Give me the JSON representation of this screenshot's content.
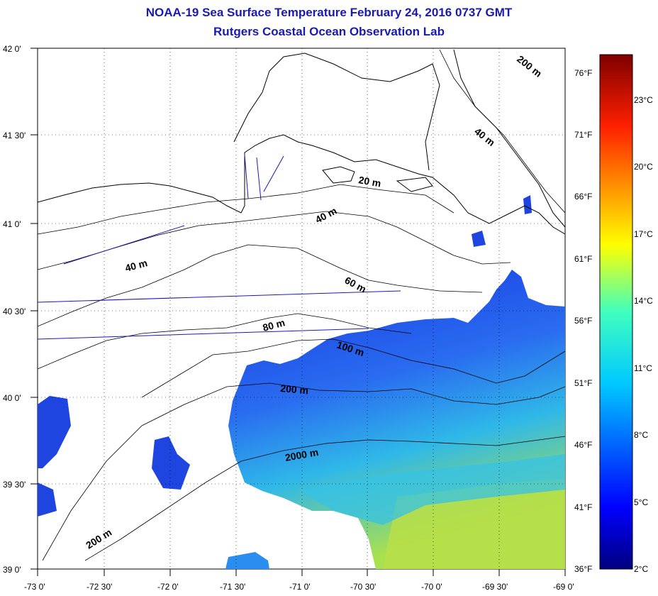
{
  "title": "NOAA-19 Sea Surface Temperature February 24, 2016 0737 GMT",
  "subtitle": "Rutgers Coastal Ocean Observation Lab",
  "lat_labels": [
    "42 0'",
    "41 30'",
    "41 0'",
    "40 30'",
    "40 0'",
    "39 30'",
    "39 0'"
  ],
  "lon_labels": [
    "-73 0'",
    "-72 30'",
    "-72 0'",
    "-71 30'",
    "-71 0'",
    "-70 30'",
    "-70 0'",
    "-69 30'",
    "-69 0'"
  ],
  "colorbar_f": [
    "76°F",
    "71°F",
    "66°F",
    "61°F",
    "56°F",
    "51°F",
    "46°F",
    "41°F",
    "36°F"
  ],
  "colorbar_c": [
    "23°C",
    "20°C",
    "17°C",
    "14°C",
    "11°C",
    "8°C",
    "5°C",
    "2°C"
  ],
  "contour_labels": [
    "20 m",
    "40 m",
    "40 m",
    "40 m",
    "60 m",
    "80 m",
    "100 m",
    "200 m",
    "2000 m",
    "200 m",
    "200 m"
  ],
  "colors": {
    "title": "#1a1ab3",
    "cold_blue": "#1e3fd8",
    "mid_cyan": "#34c8e0",
    "warm_yellow": "#c8e040"
  }
}
